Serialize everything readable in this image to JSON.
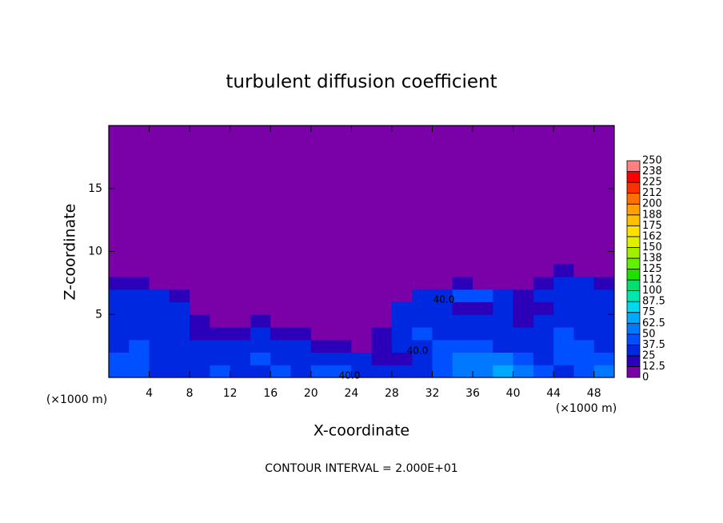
{
  "chart_data": {
    "type": "heatmap",
    "title": "turbulent diffusion coefficient",
    "xlabel": "X-coordinate",
    "ylabel": "Z-coordinate",
    "x_unit_label": "(×1000 m)",
    "y_unit_label": "(×1000 m)",
    "footer": "CONTOUR INTERVAL = 2.000E+01",
    "contour_labels": [
      "40.0",
      "40.0",
      "40.0"
    ],
    "xlim": [
      0,
      50
    ],
    "ylim": [
      0,
      20
    ],
    "xticks": [
      4,
      8,
      12,
      16,
      20,
      24,
      28,
      32,
      36,
      40,
      44,
      48
    ],
    "yticks": [
      5,
      10,
      15
    ],
    "background_color": "#7a00a8",
    "x": [
      1,
      3,
      5,
      7,
      9,
      11,
      13,
      15,
      17,
      19,
      21,
      23,
      25,
      27,
      29,
      31,
      33,
      35,
      37,
      39,
      41,
      43,
      45,
      47,
      49
    ],
    "y": [
      0.5,
      1.5,
      2.5,
      3.5,
      4.5,
      5.5,
      6.5,
      7.5,
      8.5
    ],
    "values": [
      [
        45,
        40,
        35,
        30,
        35,
        40,
        30,
        35,
        40,
        35,
        45,
        40,
        35,
        30,
        25,
        35,
        45,
        55,
        60,
        65,
        50,
        40,
        35,
        45,
        50
      ],
      [
        40,
        45,
        35,
        30,
        30,
        35,
        35,
        40,
        35,
        30,
        35,
        30,
        25,
        15,
        20,
        30,
        40,
        50,
        60,
        55,
        40,
        35,
        40,
        45,
        45
      ],
      [
        35,
        40,
        30,
        25,
        25,
        30,
        25,
        30,
        30,
        25,
        20,
        15,
        10,
        20,
        25,
        35,
        45,
        45,
        40,
        35,
        30,
        35,
        40,
        40,
        35
      ],
      [
        35,
        35,
        30,
        30,
        20,
        15,
        20,
        25,
        20,
        15,
        10,
        8,
        5,
        15,
        30,
        40,
        35,
        30,
        30,
        25,
        25,
        30,
        40,
        35,
        30
      ],
      [
        30,
        30,
        35,
        35,
        15,
        10,
        10,
        15,
        10,
        8,
        5,
        5,
        5,
        10,
        35,
        35,
        30,
        25,
        25,
        30,
        20,
        25,
        35,
        30,
        30
      ],
      [
        30,
        30,
        30,
        30,
        8,
        5,
        5,
        5,
        5,
        5,
        5,
        5,
        5,
        5,
        30,
        30,
        25,
        20,
        20,
        25,
        20,
        20,
        35,
        30,
        30
      ],
      [
        30,
        25,
        25,
        20,
        5,
        5,
        5,
        5,
        5,
        5,
        5,
        5,
        5,
        5,
        10,
        30,
        35,
        40,
        40,
        25,
        20,
        25,
        30,
        30,
        25
      ],
      [
        20,
        15,
        5,
        5,
        5,
        5,
        5,
        5,
        5,
        5,
        5,
        5,
        5,
        5,
        5,
        5,
        10,
        15,
        10,
        5,
        5,
        20,
        25,
        25,
        20
      ],
      [
        5,
        5,
        5,
        5,
        5,
        5,
        5,
        5,
        5,
        5,
        5,
        5,
        5,
        5,
        5,
        5,
        5,
        5,
        5,
        5,
        5,
        10,
        15,
        10,
        5
      ]
    ],
    "colorbar": {
      "ticks": [
        0,
        12.5,
        25,
        37.5,
        50,
        62.5,
        75,
        87.5,
        100,
        {
          "value": 112.5,
          "label": "112"
        },
        125,
        {
          "value": 137.5,
          "label": "138"
        },
        150,
        {
          "value": 162.5,
          "label": "162"
        },
        175,
        {
          "value": 187.5,
          "label": "188"
        },
        200,
        {
          "value": 212.5,
          "label": "212"
        },
        225,
        {
          "value": 237.5,
          "label": "238"
        },
        250
      ],
      "colors": [
        "#7a00a8",
        "#2c00b8",
        "#0028e0",
        "#0050ff",
        "#0078ff",
        "#00a8ff",
        "#00d8f0",
        "#00e8b0",
        "#00e070",
        "#20e000",
        "#60f000",
        "#a0f000",
        "#e0f000",
        "#ffe000",
        "#ffc000",
        "#ffa000",
        "#ff7000",
        "#ff3000",
        "#ff0000",
        "#ff8080"
      ]
    }
  }
}
